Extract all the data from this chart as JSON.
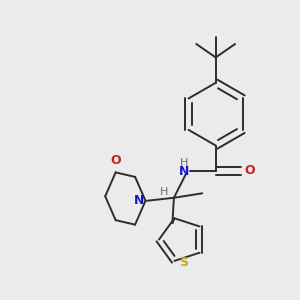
{
  "background_color": "#ebebeb",
  "bond_color": "#2d2d2d",
  "N_color": "#1818c0",
  "O_color": "#cc2020",
  "S_color": "#c8a820",
  "H_color": "#607070",
  "figsize": [
    3.0,
    3.0
  ],
  "dpi": 100,
  "xlim": [
    0,
    10
  ],
  "ylim": [
    0,
    10
  ]
}
